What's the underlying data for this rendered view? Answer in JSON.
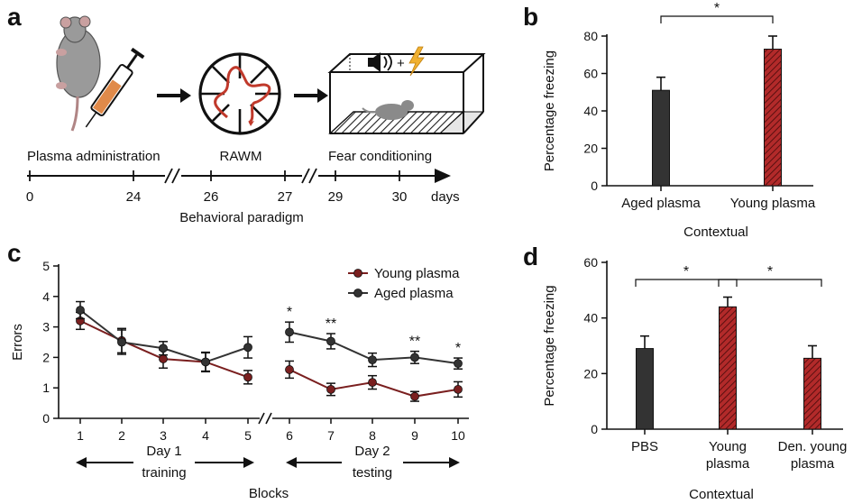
{
  "colors": {
    "dark": "#333333",
    "red": "#b22a2a",
    "young_line": "#7a1f1f",
    "aged_line": "#333333",
    "timeline": "#111111"
  },
  "panel_a": {
    "letter": "a",
    "timeline": {
      "ticks": [
        {
          "label": "0",
          "x": 0
        },
        {
          "label": "24",
          "x": 24
        },
        {
          "label": "26",
          "x": 26
        },
        {
          "label": "27",
          "x": 27
        },
        {
          "label": "29",
          "x": 29
        },
        {
          "label": "30",
          "x": 30
        }
      ],
      "unit": "days",
      "xlabel": "Behavioral paradigm"
    },
    "stages": [
      "Plasma administration",
      "RAWM",
      "Fear conditioning"
    ],
    "icons": [
      "mouse-icon",
      "syringe-icon",
      "radial-arm-maze-icon",
      "fear-conditioning-chamber-icon",
      "speaker-icon",
      "lightning-icon"
    ],
    "plus": "+"
  },
  "chart_data": [
    {
      "panel": "b",
      "type": "bar",
      "categories": [
        "Aged plasma",
        "Young plasma"
      ],
      "values": [
        51,
        73
      ],
      "errors": [
        7,
        7
      ],
      "ylabel": "Percentage freezing",
      "xlabel": "Contextual",
      "ylim": [
        0,
        80
      ],
      "yticks": [
        0,
        20,
        40,
        60,
        80
      ],
      "significance": [
        {
          "from": 0,
          "to": 1,
          "label": "*"
        }
      ],
      "colors": [
        "#333333",
        "#b22a2a"
      ]
    },
    {
      "panel": "c",
      "type": "line",
      "x": [
        1,
        2,
        3,
        4,
        5,
        6,
        7,
        8,
        9,
        10
      ],
      "series": [
        {
          "name": "Young plasma",
          "values": [
            3.2,
            2.55,
            1.95,
            1.85,
            1.35,
            1.6,
            0.95,
            1.18,
            0.72,
            0.95
          ],
          "errors": [
            0.28,
            0.4,
            0.3,
            0.3,
            0.22,
            0.28,
            0.2,
            0.22,
            0.16,
            0.25
          ],
          "color": "#7a1f1f"
        },
        {
          "name": "Aged plasma",
          "values": [
            3.55,
            2.5,
            2.3,
            1.85,
            2.33,
            2.83,
            2.53,
            1.92,
            2.0,
            1.8
          ],
          "errors": [
            0.28,
            0.4,
            0.22,
            0.32,
            0.35,
            0.33,
            0.25,
            0.22,
            0.2,
            0.18
          ],
          "color": "#333333"
        }
      ],
      "ylabel": "Errors",
      "xlabel": "Blocks",
      "ylim": [
        0,
        5
      ],
      "yticks": [
        0,
        1,
        2,
        3,
        4,
        5
      ],
      "significance": [
        {
          "x": 6,
          "label": "*"
        },
        {
          "x": 7,
          "label": "**"
        },
        {
          "x": 9,
          "label": "**"
        },
        {
          "x": 10,
          "label": "*"
        }
      ],
      "day_labels": [
        {
          "title": "Day 1",
          "subtitle": "training"
        },
        {
          "title": "Day 2",
          "subtitle": "testing"
        }
      ],
      "legend_position": "top-right"
    },
    {
      "panel": "d",
      "type": "bar",
      "categories": [
        "PBS",
        "Young plasma",
        "Den. young plasma"
      ],
      "category_lines": [
        [
          "PBS"
        ],
        [
          "Young",
          "plasma"
        ],
        [
          "Den. young",
          "plasma"
        ]
      ],
      "values": [
        29,
        44,
        25.5
      ],
      "errors": [
        4.5,
        3.5,
        4.5
      ],
      "ylabel": "Percentage freezing",
      "xlabel": "Contextual",
      "ylim": [
        0,
        60
      ],
      "yticks": [
        0,
        20,
        40,
        60
      ],
      "significance": [
        {
          "from": 0,
          "to": 1,
          "label": "*"
        },
        {
          "from": 1,
          "to": 2,
          "label": "*"
        }
      ],
      "colors": [
        "#333333",
        "#b22a2a",
        "#b22a2a"
      ]
    }
  ],
  "panel_letters": {
    "b": "b",
    "c": "c",
    "d": "d"
  }
}
